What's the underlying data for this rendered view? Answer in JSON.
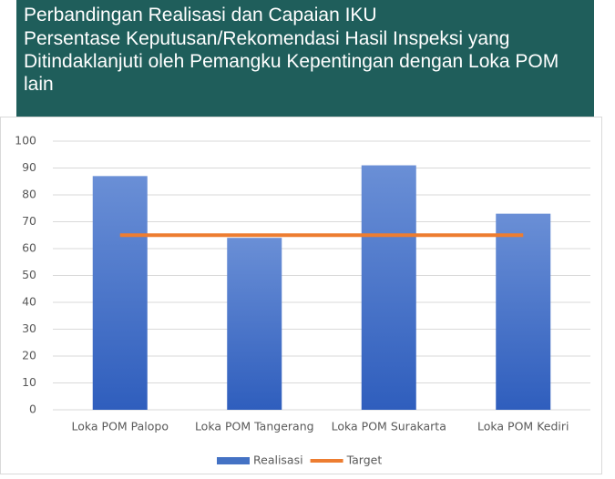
{
  "chart_data": {
    "type": "bar",
    "title": "Perbandingan Realisasi dan Capaian IKU",
    "subtitle": "Persentase Keputusan/Rekomendasi Hasil Inspeksi yang Ditindaklanjuti oleh Pemangku Kepentingan dengan Loka POM lain",
    "categories": [
      "Loka POM Palopo",
      "Loka POM Tangerang",
      "Loka POM Surakarta",
      "Loka POM Kediri"
    ],
    "series": [
      {
        "name": "Realisasi",
        "type": "bar",
        "color": "#4472c4",
        "values": [
          87,
          64,
          91,
          73
        ]
      },
      {
        "name": "Target",
        "type": "line",
        "color": "#ed7d31",
        "values": [
          65,
          65,
          65,
          65
        ]
      }
    ],
    "ylim": [
      0,
      100
    ],
    "yticks": [
      0,
      10,
      20,
      30,
      40,
      50,
      60,
      70,
      80,
      90,
      100
    ],
    "grid": true,
    "legend": "bottom"
  }
}
